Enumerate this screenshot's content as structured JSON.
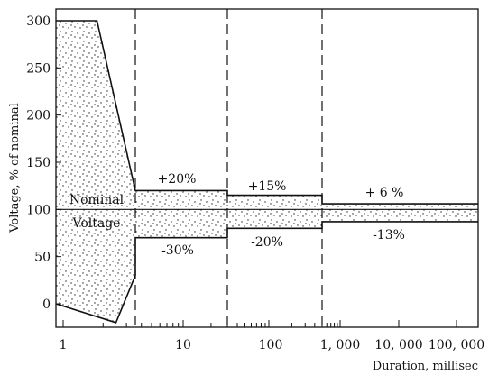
{
  "chart_data": {
    "type": "area",
    "xlabel": "Duration, millisec",
    "ylabel": "Voltage, % of nominal",
    "ylim": [
      -20,
      310
    ],
    "x_scale": "log",
    "grid": false,
    "y_ticks": [
      0,
      50,
      100,
      150,
      200,
      250,
      300
    ],
    "x_tick_labels": [
      "1",
      "10",
      "100",
      "1, 000",
      "10, 000",
      "100, 000"
    ],
    "upper_limit": {
      "x": [
        "1",
        "1.8",
        "3.5",
        "3.5",
        "30",
        "30",
        "500",
        "500",
        "100,000"
      ],
      "y": [
        300,
        300,
        120,
        120,
        120,
        115,
        115,
        106,
        106
      ]
    },
    "lower_limit": {
      "x": [
        "1",
        "2.5",
        "3.5",
        "3.5",
        "30",
        "30",
        "500",
        "500",
        "100,000"
      ],
      "y": [
        0,
        -20,
        30,
        70,
        70,
        80,
        80,
        87,
        87
      ]
    },
    "nominal": 100,
    "annotations": [
      {
        "text": "+20%"
      },
      {
        "text": "-30%"
      },
      {
        "text": "+15%"
      },
      {
        "text": "-20%"
      },
      {
        "text": "+ 6 %"
      },
      {
        "text": "-13%"
      },
      {
        "text": "Nominal"
      },
      {
        "text": "Voltage"
      }
    ],
    "vertical_dividers_ms": [
      3.5,
      30,
      500
    ]
  }
}
